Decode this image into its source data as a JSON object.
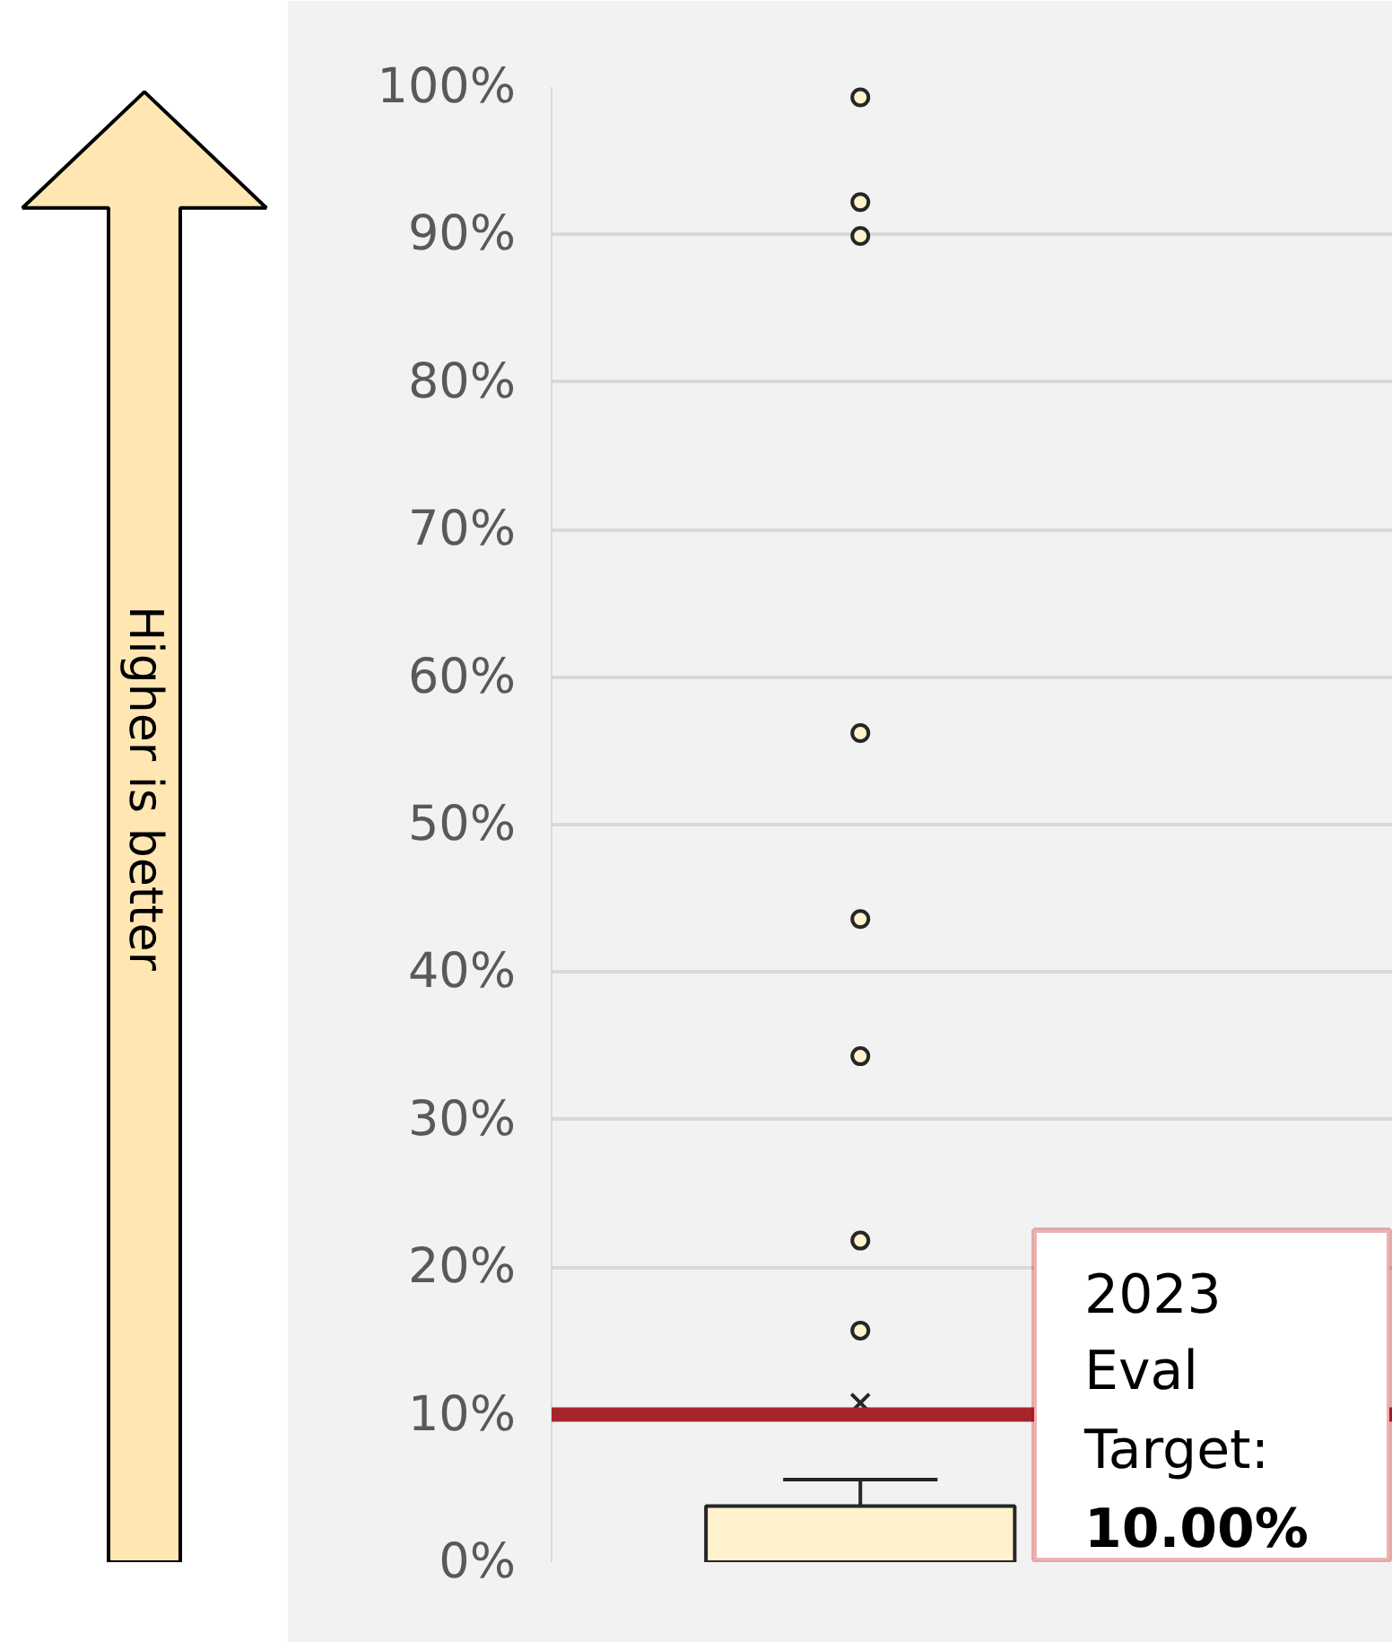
{
  "chart_data": {
    "type": "box",
    "categories": [
      null
    ],
    "series": [
      {
        "color": "#fff2cc",
        "boxes": [
          {
            "low": 0,
            "q1": 0,
            "median": 0,
            "q3": 3.8,
            "high": 5.6,
            "mean": 10.8,
            "outliers": [
              99.3,
              92.2,
              89.9,
              56.2,
              43.6,
              34.3,
              21.8,
              15.7
            ]
          }
        ]
      }
    ],
    "ylim": [
      0,
      100
    ],
    "yticks": [
      {
        "value": 0,
        "label": "0%"
      },
      {
        "value": 10,
        "label": "10%"
      },
      {
        "value": 20,
        "label": "20%"
      },
      {
        "value": 30,
        "label": "30%"
      },
      {
        "value": 40,
        "label": "40%"
      },
      {
        "value": 50,
        "label": "50%"
      },
      {
        "value": 60,
        "label": "60%"
      },
      {
        "value": 70,
        "label": "70%"
      },
      {
        "value": 80,
        "label": "80%"
      },
      {
        "value": 90,
        "label": "90%"
      },
      {
        "value": 100,
        "label": "100%"
      }
    ],
    "grid": "y",
    "ref_lines": [
      {
        "axis": "y",
        "value": 10,
        "label": "2023 Eval Target: 10.00%",
        "color": "#a5252a"
      }
    ],
    "annotations": [
      "Higher is better"
    ]
  }
}
